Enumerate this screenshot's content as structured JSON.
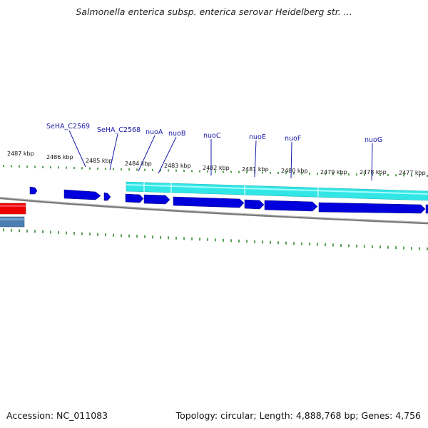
{
  "title": "Salmonella enterica subsp. enterica serovar Heidelberg str. ...",
  "footer": {
    "accession": "Accession: NC_011083",
    "topology": "Topology: circular; Length: 4,888,768 bp; Genes: 4,756"
  },
  "kbp_labels": [
    "2487 kbp",
    "2486 kbp",
    "2485 kbp",
    "2484 kbp",
    "2483 kbp",
    "2482 kbp",
    "2481 kbp",
    "2480 kbp",
    "2479 kbp",
    "2478 kbp",
    "2477 kbp"
  ],
  "gene_labels": [
    "SeHA_C2569",
    "SeHA_C2568",
    "nuoA",
    "nuoB",
    "nuoC",
    "nuoE",
    "nuoF",
    "nuoG"
  ],
  "colors": {
    "backbone": "#808080",
    "forward_gene": "#0000dd",
    "operon": "#33e6e6",
    "reverse_red": "#ee0000",
    "reverse_steel": "#4a7fb0",
    "tick": "#2e8b2e",
    "label": "#1a1aa8"
  }
}
